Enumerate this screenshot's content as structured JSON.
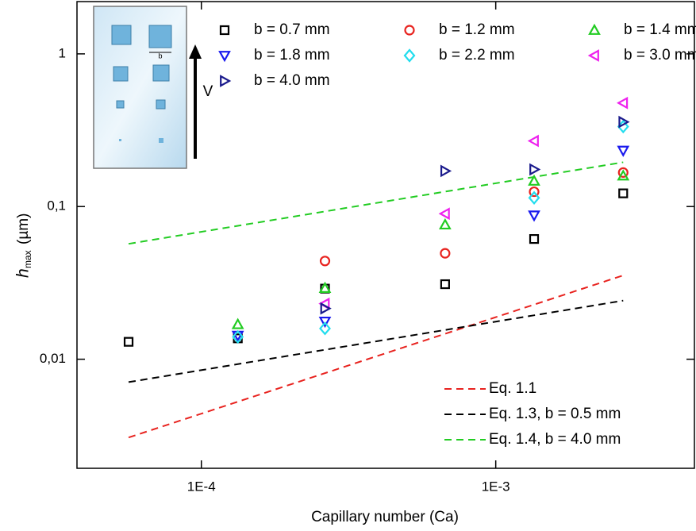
{
  "chart_data": {
    "type": "scatter",
    "x_label": "Capillary number (Ca)",
    "y_label": "h",
    "y_label_sub": "max",
    "y_label_unit": "(µm)",
    "inset_labels": {
      "width": "b",
      "velocity": "V"
    },
    "x_log": true,
    "y_log": true,
    "xlim": [
      3.78e-05,
      0.00473
    ],
    "ylim": [
      0.00193,
      2.2
    ],
    "xticks": [
      {
        "value": 0.0001,
        "label": "1E-4"
      },
      {
        "value": 0.001,
        "label": "1E-3"
      }
    ],
    "yticks": [
      {
        "value": 0.01,
        "label": "0,01"
      },
      {
        "value": 0.1,
        "label": "0,1"
      },
      {
        "value": 1,
        "label": "1"
      }
    ],
    "x": [
      5.66e-05,
      0.000133,
      0.000263,
      0.000673,
      0.00135,
      0.00271
    ],
    "series": [
      {
        "name": "b = 0.7 mm",
        "color": "#000000",
        "marker": "square",
        "values": [
          0.013,
          0.0137,
          0.029,
          0.031,
          0.0613,
          0.122
        ]
      },
      {
        "name": "b = 1.2 mm",
        "color": "#e8231f",
        "marker": "circle",
        "values": [
          null,
          null,
          0.044,
          0.0494,
          0.125,
          0.167
        ]
      },
      {
        "name": "b = 1.4 mm",
        "color": "#22cc22",
        "marker": "triangle-up",
        "values": [
          null,
          0.0169,
          0.0292,
          0.076,
          0.147,
          0.159
        ]
      },
      {
        "name": "b = 1.8 mm",
        "color": "#1a1aee",
        "marker": "triangle-down",
        "values": [
          null,
          0.0143,
          0.0177,
          null,
          0.0877,
          0.233
        ]
      },
      {
        "name": "b = 2.2 mm",
        "color": "#22ddee",
        "marker": "diamond",
        "values": [
          null,
          0.014,
          0.0159,
          null,
          0.114,
          0.334
        ]
      },
      {
        "name": "b = 3.0 mm",
        "color": "#ee22ee",
        "marker": "triangle-left",
        "values": [
          null,
          null,
          0.0231,
          0.0898,
          0.269,
          0.477
        ]
      },
      {
        "name": "b = 4.0 mm",
        "color": "#1a1a8c",
        "marker": "triangle-right",
        "values": [
          null,
          null,
          0.0215,
          0.171,
          0.175,
          0.358
        ]
      }
    ],
    "lines": [
      {
        "name": "Eq. 1.1",
        "color": "#e8231f",
        "x": [
          5.66e-05,
          0.00271
        ],
        "values": [
          0.00307,
          0.0354
        ]
      },
      {
        "name": "Eq. 1.3, b = 0.5 mm",
        "color": "#000000",
        "x": [
          5.66e-05,
          0.00271
        ],
        "values": [
          0.00708,
          0.0242
        ]
      },
      {
        "name": "Eq. 1.4, b = 4.0 mm",
        "color": "#22cc22",
        "x": [
          5.66e-05,
          0.00271
        ],
        "values": [
          0.057,
          0.195
        ]
      }
    ]
  }
}
